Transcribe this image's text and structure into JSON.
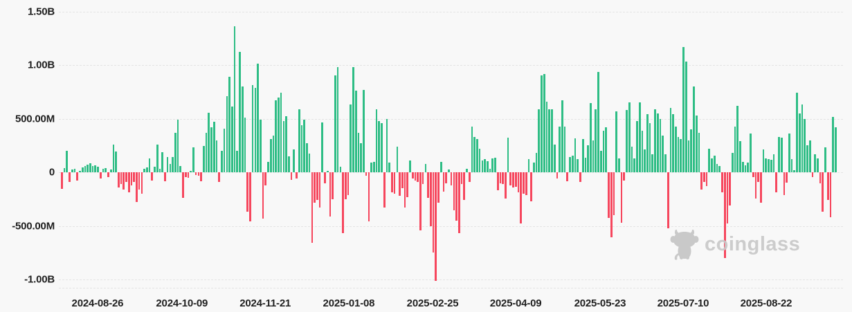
{
  "watermark": {
    "text": "coinglass"
  },
  "chart_data": {
    "type": "bar",
    "title": "",
    "description": "Daily net flow bar chart (green = inflow, red = outflow), values in USD",
    "value_unit": "millions USD",
    "grid": "dashed-horizontal",
    "legend": "none",
    "ylim": [
      -1120,
      1500
    ],
    "positive_color": "#2ebd85",
    "negative_color": "#f6465d",
    "y_ticks": [
      {
        "label": "1.50B",
        "value": 1500
      },
      {
        "label": "1.00B",
        "value": 1000
      },
      {
        "label": "500.00M",
        "value": 500
      },
      {
        "label": "0",
        "value": 0
      },
      {
        "label": "-500.00M",
        "value": -500
      },
      {
        "label": "-1.00B",
        "value": -1000
      }
    ],
    "x_ticks": [
      {
        "label": "2024-08-26",
        "i": 14.2
      },
      {
        "label": "2024-10-09",
        "i": 46.9
      },
      {
        "label": "2024-11-21",
        "i": 79.2
      },
      {
        "label": "2025-01-08",
        "i": 111.6
      },
      {
        "label": "2025-02-25",
        "i": 144.1
      },
      {
        "label": "2025-04-09",
        "i": 176.3
      },
      {
        "label": "2025-05-23",
        "i": 209.0
      },
      {
        "label": "2025-07-10",
        "i": 241.2
      },
      {
        "label": "2025-08-22",
        "i": 273.4
      }
    ],
    "values": [
      -155,
      38,
      197,
      -90,
      28,
      35,
      -75,
      15,
      45,
      60,
      70,
      85,
      55,
      65,
      50,
      -60,
      35,
      40,
      -45,
      25,
      255,
      195,
      -140,
      -110,
      -160,
      -90,
      -185,
      -120,
      -90,
      -275,
      -160,
      -200,
      30,
      45,
      130,
      -80,
      50,
      260,
      30,
      190,
      -85,
      145,
      75,
      140,
      370,
      490,
      60,
      -240,
      -45,
      -50,
      15,
      230,
      -25,
      -30,
      -85,
      245,
      370,
      555,
      420,
      470,
      300,
      -90,
      200,
      405,
      710,
      893,
      610,
      1360,
      200,
      1120,
      800,
      510,
      -370,
      -455,
      810,
      785,
      1010,
      490,
      -430,
      -122,
      100,
      310,
      340,
      670,
      700,
      745,
      480,
      520,
      150,
      -70,
      210,
      -60,
      590,
      440,
      490,
      270,
      175,
      -655,
      -285,
      -255,
      -330,
      465,
      -103,
      10,
      -415,
      -250,
      905,
      980,
      50,
      -565,
      -253,
      -210,
      630,
      980,
      760,
      370,
      270,
      765,
      -30,
      -455,
      90,
      100,
      590,
      480,
      460,
      -330,
      500,
      90,
      -190,
      -200,
      240,
      -220,
      -150,
      -330,
      -230,
      110,
      -60,
      -80,
      -90,
      -540,
      -110,
      78,
      -240,
      -502,
      -750,
      -1010,
      -285,
      97,
      -180,
      -105,
      28,
      -120,
      -355,
      -453,
      -570,
      -110,
      -255,
      30,
      -90,
      427,
      330,
      310,
      220,
      110,
      120,
      105,
      35,
      130,
      135,
      -165,
      -100,
      -110,
      -245,
      325,
      -120,
      -140,
      -135,
      -185,
      -480,
      -200,
      -210,
      120,
      -270,
      90,
      180,
      585,
      905,
      917,
      660,
      585,
      590,
      255,
      -60,
      425,
      670,
      425,
      -85,
      140,
      155,
      316,
      120,
      -90,
      310,
      135,
      250,
      645,
      300,
      590,
      935,
      200,
      385,
      420,
      -425,
      -605,
      -400,
      570,
      130,
      -470,
      -80,
      578,
      650,
      240,
      130,
      475,
      650,
      390,
      215,
      545,
      460,
      165,
      585,
      550,
      500,
      345,
      165,
      -524,
      603,
      540,
      425,
      330,
      310,
      1170,
      1030,
      300,
      403,
      800,
      530,
      366,
      -160,
      -90,
      -130,
      221,
      130,
      155,
      80,
      55,
      -185,
      -800,
      -480,
      -310,
      180,
      427,
      617,
      290,
      95,
      65,
      90,
      360,
      -45,
      -245,
      -90,
      -285,
      210,
      130,
      125,
      115,
      170,
      -185,
      327,
      320,
      -213,
      -95,
      360,
      120,
      20,
      742,
      547,
      635,
      494,
      253,
      296,
      -45,
      167,
      129,
      -100,
      -365,
      232,
      -260,
      -417,
      516,
      421
    ]
  }
}
